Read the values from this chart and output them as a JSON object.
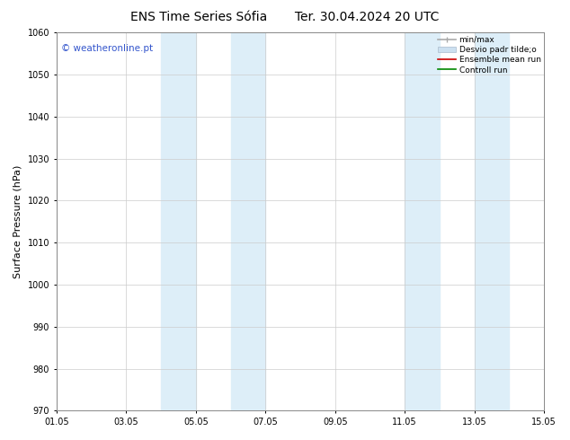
{
  "title": "ENS Time Series Sófia       Ter. 30.04.2024 20 UTC",
  "ylabel": "Surface Pressure (hPa)",
  "xlim": [
    0,
    14
  ],
  "ylim": [
    970,
    1060
  ],
  "yticks": [
    970,
    980,
    990,
    1000,
    1010,
    1020,
    1030,
    1040,
    1050,
    1060
  ],
  "xtick_labels": [
    "01.05",
    "03.05",
    "05.05",
    "07.05",
    "09.05",
    "11.05",
    "13.05",
    "15.05"
  ],
  "xtick_positions": [
    0,
    2,
    4,
    6,
    8,
    10,
    12,
    14
  ],
  "bg_color": "#ffffff",
  "plot_bg_color": "#ffffff",
  "shaded_bands": [
    {
      "x_start": 3.0,
      "x_end": 4.0
    },
    {
      "x_start": 5.0,
      "x_end": 6.0
    },
    {
      "x_start": 10.0,
      "x_end": 11.0
    },
    {
      "x_start": 12.0,
      "x_end": 13.0
    }
  ],
  "shaded_color": "#ddeef8",
  "watermark_text": "© weatheronline.pt",
  "watermark_color": "#3355cc",
  "legend_labels": [
    "min/max",
    "Desvio padr tilde;o",
    "Ensemble mean run",
    "Controll run"
  ],
  "legend_colors": [
    "#aaaaaa",
    "#cce0f0",
    "#cc0000",
    "#008800"
  ],
  "grid_color": "#cccccc",
  "title_fontsize": 10,
  "tick_fontsize": 7,
  "ylabel_fontsize": 8
}
